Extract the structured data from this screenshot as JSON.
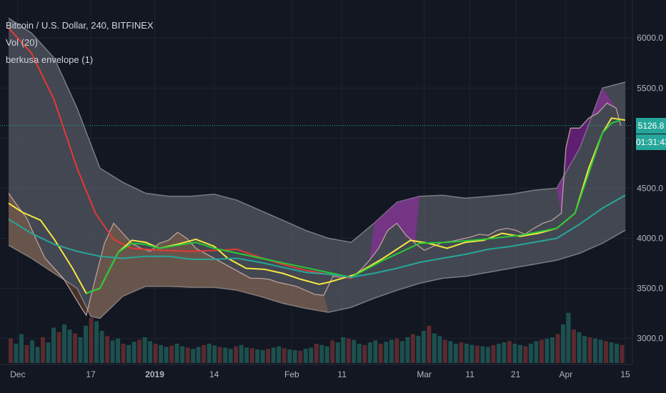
{
  "legend": {
    "symbol": "Bitcoin / U.S. Dollar, 240, BITFINEX",
    "vol": "Vol (20)",
    "indicator": "berkusa envelope (1)"
  },
  "last_price_label": "5126.8",
  "countdown_label": "01:31:43",
  "colors": {
    "background": "#131722",
    "ema_down": "#e53935",
    "ema_up": "#26c938",
    "fast_line": "#f5e642",
    "slow_line": "#26a69a",
    "envelope": "#6b6f78",
    "highlight_up": "#9c27b0",
    "highlight_down": "#c67b3c",
    "price_label": "#26a69a"
  },
  "chart_data": {
    "type": "line",
    "y_axis": {
      "ticks": [
        3000.0,
        3500.0,
        4000.0,
        4500.0,
        5000.0,
        5500.0,
        6000.0
      ],
      "tick_labels": [
        "3000.0",
        "3500.0",
        "4000.0",
        "4500.0",
        "5000.0",
        "5500.0",
        "6000.0"
      ],
      "range": [
        2740,
        6380
      ]
    },
    "x_axis": {
      "range": [
        0,
        135
      ],
      "ticks": [
        {
          "x": 2,
          "label": "Dec"
        },
        {
          "x": 18,
          "label": "17"
        },
        {
          "x": 32,
          "label": "2019"
        },
        {
          "x": 45,
          "label": "14"
        },
        {
          "x": 62,
          "label": "Feb"
        },
        {
          "x": 73,
          "label": "11"
        },
        {
          "x": 91,
          "label": "Mar"
        },
        {
          "x": 101,
          "label": "11"
        },
        {
          "x": 111,
          "label": "21"
        },
        {
          "x": 122,
          "label": "Apr"
        },
        {
          "x": 135,
          "label": "15"
        }
      ]
    },
    "last_price": 5126.8,
    "series": [
      {
        "color_key": "ema_down",
        "points": [
          [
            0,
            6100
          ],
          [
            5,
            5850
          ],
          [
            10,
            5380
          ],
          [
            15,
            4700
          ],
          [
            19,
            4250
          ],
          [
            23,
            3990
          ],
          [
            27,
            3900
          ],
          [
            33,
            3880
          ],
          [
            40,
            3870
          ],
          [
            46,
            3880
          ],
          [
            50,
            3890
          ],
          [
            55,
            3810
          ],
          [
            60,
            3740
          ],
          [
            65,
            3680
          ],
          [
            70,
            3640
          ],
          [
            75,
            3600
          ]
        ]
      },
      {
        "color_key": "fast_line",
        "points": [
          [
            0,
            4350
          ],
          [
            3,
            4260
          ],
          [
            7,
            4180
          ],
          [
            10,
            3990
          ],
          [
            14,
            3700
          ],
          [
            17,
            3450
          ],
          [
            20,
            3500
          ],
          [
            24,
            3860
          ],
          [
            27,
            3980
          ],
          [
            30,
            3960
          ],
          [
            33,
            3900
          ],
          [
            37,
            3940
          ],
          [
            41,
            3990
          ],
          [
            45,
            3920
          ],
          [
            48,
            3800
          ],
          [
            52,
            3700
          ],
          [
            56,
            3690
          ],
          [
            60,
            3650
          ],
          [
            64,
            3590
          ],
          [
            68,
            3540
          ],
          [
            70,
            3560
          ],
          [
            76,
            3640
          ],
          [
            82,
            3800
          ],
          [
            88,
            3980
          ],
          [
            92,
            3950
          ],
          [
            96,
            3900
          ],
          [
            100,
            3960
          ],
          [
            104,
            3980
          ],
          [
            108,
            4050
          ],
          [
            112,
            4020
          ],
          [
            116,
            4050
          ],
          [
            120,
            4100
          ],
          [
            124,
            4250
          ],
          [
            127,
            4700
          ],
          [
            130,
            5050
          ],
          [
            132,
            5200
          ],
          [
            135,
            5180
          ]
        ]
      },
      {
        "color_key": "ema_up",
        "points": [
          [
            17,
            3450
          ],
          [
            20,
            3500
          ],
          [
            24,
            3860
          ],
          [
            27,
            3950
          ],
          [
            30,
            3940
          ],
          [
            33,
            3900
          ],
          [
            37,
            3930
          ],
          [
            41,
            3960
          ],
          [
            45,
            3900
          ],
          [
            75,
            3610
          ],
          [
            82,
            3780
          ],
          [
            90,
            3950
          ],
          [
            96,
            3960
          ],
          [
            104,
            3990
          ],
          [
            112,
            4030
          ],
          [
            120,
            4100
          ],
          [
            124,
            4250
          ],
          [
            127,
            4650
          ],
          [
            130,
            5050
          ],
          [
            132,
            5150
          ],
          [
            134,
            5180
          ]
        ]
      },
      {
        "color_key": "slow_line",
        "points": [
          [
            0,
            4190
          ],
          [
            5,
            4050
          ],
          [
            10,
            3940
          ],
          [
            15,
            3870
          ],
          [
            20,
            3820
          ],
          [
            25,
            3800
          ],
          [
            30,
            3820
          ],
          [
            35,
            3820
          ],
          [
            40,
            3790
          ],
          [
            45,
            3790
          ],
          [
            50,
            3800
          ],
          [
            55,
            3760
          ],
          [
            60,
            3710
          ],
          [
            65,
            3660
          ],
          [
            70,
            3640
          ],
          [
            75,
            3610
          ],
          [
            80,
            3650
          ],
          [
            85,
            3700
          ],
          [
            90,
            3760
          ],
          [
            95,
            3800
          ],
          [
            100,
            3840
          ],
          [
            105,
            3890
          ],
          [
            110,
            3920
          ],
          [
            115,
            3960
          ],
          [
            120,
            4000
          ],
          [
            125,
            4140
          ],
          [
            130,
            4300
          ],
          [
            135,
            4430
          ]
        ]
      }
    ],
    "envelope_upper": [
      [
        0,
        6200
      ],
      [
        5,
        6050
      ],
      [
        10,
        5800
      ],
      [
        15,
        5300
      ],
      [
        20,
        4700
      ],
      [
        25,
        4560
      ],
      [
        30,
        4450
      ],
      [
        35,
        4420
      ],
      [
        40,
        4420
      ],
      [
        45,
        4440
      ],
      [
        50,
        4380
      ],
      [
        55,
        4280
      ],
      [
        60,
        4180
      ],
      [
        65,
        4080
      ],
      [
        70,
        4000
      ],
      [
        75,
        3960
      ],
      [
        80,
        4150
      ],
      [
        85,
        4360
      ],
      [
        90,
        4420
      ],
      [
        95,
        4430
      ],
      [
        100,
        4400
      ],
      [
        105,
        4420
      ],
      [
        110,
        4440
      ],
      [
        115,
        4480
      ],
      [
        120,
        4500
      ],
      [
        125,
        4900
      ],
      [
        130,
        5500
      ],
      [
        135,
        5560
      ]
    ],
    "envelope_lower": [
      [
        0,
        3930
      ],
      [
        5,
        3800
      ],
      [
        10,
        3650
      ],
      [
        15,
        3500
      ],
      [
        18,
        3220
      ],
      [
        20,
        3200
      ],
      [
        25,
        3420
      ],
      [
        30,
        3520
      ],
      [
        35,
        3520
      ],
      [
        40,
        3510
      ],
      [
        45,
        3510
      ],
      [
        50,
        3480
      ],
      [
        55,
        3420
      ],
      [
        60,
        3350
      ],
      [
        65,
        3300
      ],
      [
        70,
        3260
      ],
      [
        75,
        3310
      ],
      [
        80,
        3400
      ],
      [
        85,
        3480
      ],
      [
        90,
        3550
      ],
      [
        95,
        3600
      ],
      [
        100,
        3620
      ],
      [
        105,
        3660
      ],
      [
        110,
        3700
      ],
      [
        115,
        3740
      ],
      [
        120,
        3780
      ],
      [
        125,
        3850
      ],
      [
        130,
        3950
      ],
      [
        135,
        4080
      ]
    ],
    "price_trace": [
      [
        0,
        4450
      ],
      [
        2,
        4320
      ],
      [
        4,
        4200
      ],
      [
        6,
        3990
      ],
      [
        8,
        3800
      ],
      [
        10,
        3700
      ],
      [
        12,
        3600
      ],
      [
        14,
        3450
      ],
      [
        16,
        3300
      ],
      [
        17,
        3230
      ],
      [
        19,
        3600
      ],
      [
        21,
        3950
      ],
      [
        23,
        4150
      ],
      [
        25,
        4050
      ],
      [
        27,
        3950
      ],
      [
        29,
        3900
      ],
      [
        31,
        3870
      ],
      [
        33,
        3950
      ],
      [
        35,
        3980
      ],
      [
        37,
        4060
      ],
      [
        39,
        4000
      ],
      [
        41,
        3900
      ],
      [
        43,
        3850
      ],
      [
        45,
        3800
      ],
      [
        47,
        3750
      ],
      [
        49,
        3700
      ],
      [
        51,
        3650
      ],
      [
        53,
        3600
      ],
      [
        55,
        3600
      ],
      [
        57,
        3590
      ],
      [
        59,
        3560
      ],
      [
        61,
        3540
      ],
      [
        63,
        3520
      ],
      [
        65,
        3480
      ],
      [
        67,
        3440
      ],
      [
        69,
        3430
      ],
      [
        71,
        3620
      ],
      [
        73,
        3610
      ],
      [
        75,
        3600
      ],
      [
        77,
        3680
      ],
      [
        79,
        3780
      ],
      [
        81,
        3900
      ],
      [
        83,
        4080
      ],
      [
        85,
        4150
      ],
      [
        87,
        4030
      ],
      [
        89,
        3950
      ],
      [
        91,
        3880
      ],
      [
        93,
        3920
      ],
      [
        95,
        3960
      ],
      [
        97,
        3970
      ],
      [
        99,
        3990
      ],
      [
        101,
        4010
      ],
      [
        103,
        4040
      ],
      [
        105,
        4030
      ],
      [
        107,
        4080
      ],
      [
        109,
        4100
      ],
      [
        111,
        4080
      ],
      [
        113,
        4040
      ],
      [
        115,
        4100
      ],
      [
        117,
        4150
      ],
      [
        119,
        4180
      ],
      [
        121,
        4250
      ],
      [
        122,
        4900
      ],
      [
        123,
        5100
      ],
      [
        125,
        5100
      ],
      [
        127,
        5200
      ],
      [
        129,
        5250
      ],
      [
        131,
        5350
      ],
      [
        133,
        5300
      ],
      [
        134,
        5126.8
      ]
    ],
    "volume": [
      38,
      30,
      45,
      28,
      35,
      25,
      40,
      32,
      55,
      48,
      60,
      52,
      46,
      40,
      58,
      70,
      65,
      50,
      42,
      35,
      38,
      30,
      28,
      33,
      36,
      40,
      34,
      30,
      28,
      25,
      27,
      30,
      26,
      24,
      22,
      25,
      28,
      30,
      27,
      25,
      24,
      22,
      26,
      28,
      24,
      23,
      21,
      20,
      22,
      24,
      26,
      23,
      21,
      20,
      19,
      22,
      24,
      30,
      28,
      26,
      35,
      32,
      40,
      38,
      36,
      30,
      28,
      32,
      35,
      30,
      33,
      36,
      38,
      34,
      40,
      45,
      42,
      50,
      58,
      46,
      42,
      36,
      34,
      30,
      32,
      30,
      28,
      27,
      26,
      25,
      28,
      30,
      32,
      34,
      30,
      28,
      26,
      30,
      34,
      36,
      38,
      40,
      45,
      60,
      78,
      52,
      48,
      42,
      40,
      38,
      36,
      34,
      32,
      30,
      28
    ]
  }
}
